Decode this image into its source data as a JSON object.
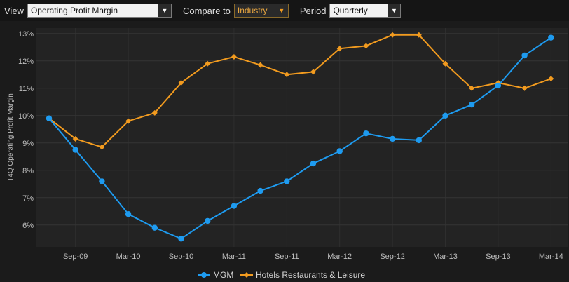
{
  "toolbar": {
    "view_label": "View",
    "view_value": "Operating Profit Margin",
    "compare_label": "Compare to",
    "compare_value": "Industry",
    "period_label": "Period",
    "period_value": "Quarterly"
  },
  "chart_data": {
    "type": "line",
    "ylabel": "T4Q Operating Profit Margin",
    "x_tick_labels": [
      "Sep-09",
      "Mar-10",
      "Sep-10",
      "Mar-11",
      "Sep-11",
      "Mar-12",
      "Sep-12",
      "Mar-13",
      "Sep-13",
      "Mar-14"
    ],
    "ylim": [
      5.2,
      13.2
    ],
    "y_ticks": [
      "6%",
      "7%",
      "8%",
      "9%",
      "10%",
      "11%",
      "12%",
      "13%"
    ],
    "grid": true,
    "legend_position": "bottom",
    "series": [
      {
        "name": "MGM",
        "color": "#1e9bf0",
        "marker": "circle",
        "values": [
          9.9,
          8.75,
          7.6,
          6.4,
          5.9,
          5.5,
          6.15,
          6.7,
          7.25,
          7.6,
          8.25,
          8.7,
          9.35,
          9.15,
          9.1,
          10.0,
          10.4,
          11.1,
          12.2,
          12.85
        ]
      },
      {
        "name": "Hotels Restaurants & Leisure",
        "color": "#f29b1f",
        "marker": "diamond",
        "values": [
          9.9,
          9.15,
          8.85,
          9.8,
          10.1,
          11.2,
          11.9,
          12.15,
          11.85,
          11.5,
          11.6,
          12.45,
          12.55,
          12.95,
          12.95,
          11.9,
          11.0,
          11.2,
          11.0,
          11.35
        ]
      }
    ]
  }
}
